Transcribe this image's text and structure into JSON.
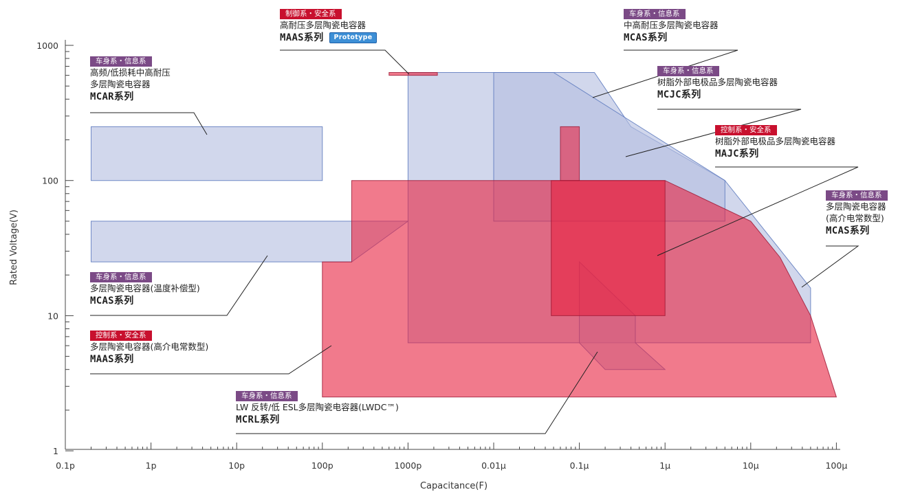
{
  "chart_data": {
    "type": "area",
    "x_axis": {
      "label": "Capacitance(F)",
      "scale": "log",
      "unit": "F",
      "range": [
        1e-13,
        0.0001
      ],
      "ticks": [
        {
          "value": 1e-13,
          "label": "0.1p"
        },
        {
          "value": 1e-12,
          "label": "1p"
        },
        {
          "value": 1e-11,
          "label": "10p"
        },
        {
          "value": 1e-10,
          "label": "100p"
        },
        {
          "value": 1e-09,
          "label": "1000p"
        },
        {
          "value": 1e-08,
          "label": "0.01µ"
        },
        {
          "value": 1e-07,
          "label": "0.1µ"
        },
        {
          "value": 1e-06,
          "label": "1µ"
        },
        {
          "value": 1e-05,
          "label": "10µ"
        },
        {
          "value": 0.0001,
          "label": "100µ"
        }
      ]
    },
    "y_axis": {
      "label": "Rated Voltage(V)",
      "scale": "log",
      "unit": "V",
      "range": [
        1,
        1000
      ],
      "ticks": [
        {
          "value": 1,
          "label": "1"
        },
        {
          "value": 10,
          "label": "10"
        },
        {
          "value": 100,
          "label": "100"
        },
        {
          "value": 1000,
          "label": "1000"
        }
      ]
    },
    "regions": [
      {
        "id": "mcar",
        "color": "blue",
        "points": [
          [
            2e-13,
            100
          ],
          [
            1e-10,
            100
          ],
          [
            1e-10,
            250
          ],
          [
            2e-13,
            250
          ]
        ]
      },
      {
        "id": "mcas-temp",
        "color": "blue",
        "points": [
          [
            2e-13,
            25
          ],
          [
            2.2e-10,
            25
          ],
          [
            1e-09,
            50
          ],
          [
            2e-13,
            50
          ]
        ]
      },
      {
        "id": "mcas-mid",
        "color": "blue",
        "points": [
          [
            1e-09,
            630
          ],
          [
            1.5e-07,
            630
          ],
          [
            4e-07,
            250
          ],
          [
            5e-06,
            100
          ],
          [
            5e-05,
            16
          ],
          [
            5e-05,
            6.3
          ],
          [
            1e-09,
            6.3
          ]
        ]
      },
      {
        "id": "mcjc",
        "color": "blue",
        "points": [
          [
            1e-08,
            630
          ],
          [
            5e-08,
            630
          ],
          [
            5e-06,
            100
          ],
          [
            5e-06,
            50
          ],
          [
            1e-08,
            50
          ]
        ]
      },
      {
        "id": "mcrl",
        "color": "blue",
        "points": [
          [
            1e-07,
            25
          ],
          [
            4.5e-07,
            10
          ],
          [
            4.5e-07,
            6.3
          ],
          [
            1e-06,
            4
          ],
          [
            2e-07,
            4
          ],
          [
            1e-07,
            6.3
          ]
        ]
      },
      {
        "id": "maas-prototype",
        "color": "red",
        "points": [
          [
            6e-10,
            630
          ],
          [
            2.2e-09,
            630
          ],
          [
            2.2e-09,
            600
          ],
          [
            6e-10,
            600
          ]
        ]
      },
      {
        "id": "maas",
        "color": "red",
        "points": [
          [
            1e-10,
            2.5
          ],
          [
            0.0001,
            2.5
          ],
          [
            5e-05,
            10
          ],
          [
            2.2e-05,
            27
          ],
          [
            1e-05,
            50
          ],
          [
            1e-06,
            100
          ],
          [
            2.2e-10,
            100
          ],
          [
            2.2e-10,
            25
          ],
          [
            1e-10,
            25
          ]
        ]
      },
      {
        "id": "majc",
        "color": "red",
        "points": [
          [
            4.7e-08,
            10
          ],
          [
            1e-06,
            10
          ],
          [
            1e-06,
            100
          ],
          [
            4.7e-08,
            100
          ]
        ]
      },
      {
        "id": "majc-high",
        "color": "red",
        "points": [
          [
            6e-08,
            100
          ],
          [
            1e-07,
            100
          ],
          [
            1e-07,
            250
          ],
          [
            6e-08,
            250
          ]
        ]
      }
    ],
    "colors": {
      "blue_fill": "#b4bfe0",
      "blue_stroke": "#5a78bd",
      "red_fill": "#e8223f",
      "red_stroke": "#9e1a36",
      "badge_purple": "#7b4a86",
      "badge_red": "#c8102e",
      "prototype_badge": "#3d8fd6"
    },
    "grid": false,
    "legend": "none"
  },
  "labels": [
    {
      "key": "mcar",
      "badge": "车身系・信息系",
      "badge_color": "purple",
      "lines": [
        "高频/低损耗中高耐压",
        "多层陶瓷电容器"
      ],
      "series": "MCAR系列"
    },
    {
      "key": "maas-prototype",
      "badge": "制御系・安全系",
      "badge_color": "red",
      "lines": [
        "高耐压多层陶瓷电容器"
      ],
      "series": "MAAS系列",
      "tag": "Prototype"
    },
    {
      "key": "mcas-mid",
      "badge": "车身系・信息系",
      "badge_color": "purple",
      "lines": [
        "中高耐压多层陶瓷电容器"
      ],
      "series": "MCAS系列"
    },
    {
      "key": "mcjc",
      "badge": "车身系・信息系",
      "badge_color": "purple",
      "lines": [
        "树脂外部电极品多层陶瓷电容器"
      ],
      "series": "MCJC系列"
    },
    {
      "key": "majc",
      "badge": "控制系・安全系",
      "badge_color": "red",
      "lines": [
        "树脂外部电极品多层陶瓷电容器"
      ],
      "series": "MAJC系列"
    },
    {
      "key": "mcas-high-k",
      "badge": "车身系・信息系",
      "badge_color": "purple",
      "lines": [
        "多层陶瓷电容器",
        "(高介电常数型)"
      ],
      "series": "MCAS系列"
    },
    {
      "key": "mcas-temp",
      "badge": "车身系・信息系",
      "badge_color": "purple",
      "lines": [
        "多层陶瓷电容器(温度补偿型)"
      ],
      "series": "MCAS系列"
    },
    {
      "key": "maas",
      "badge": "控制系・安全系",
      "badge_color": "red",
      "lines": [
        "多层陶瓷电容器(高介电常数型)"
      ],
      "series": "MAAS系列"
    },
    {
      "key": "mcrl",
      "badge": "车身系・信息系",
      "badge_color": "purple",
      "lines": [
        "LW 反转/低 ESL多层陶瓷电容器(LWDC™)"
      ],
      "series": "MCRL系列"
    }
  ]
}
